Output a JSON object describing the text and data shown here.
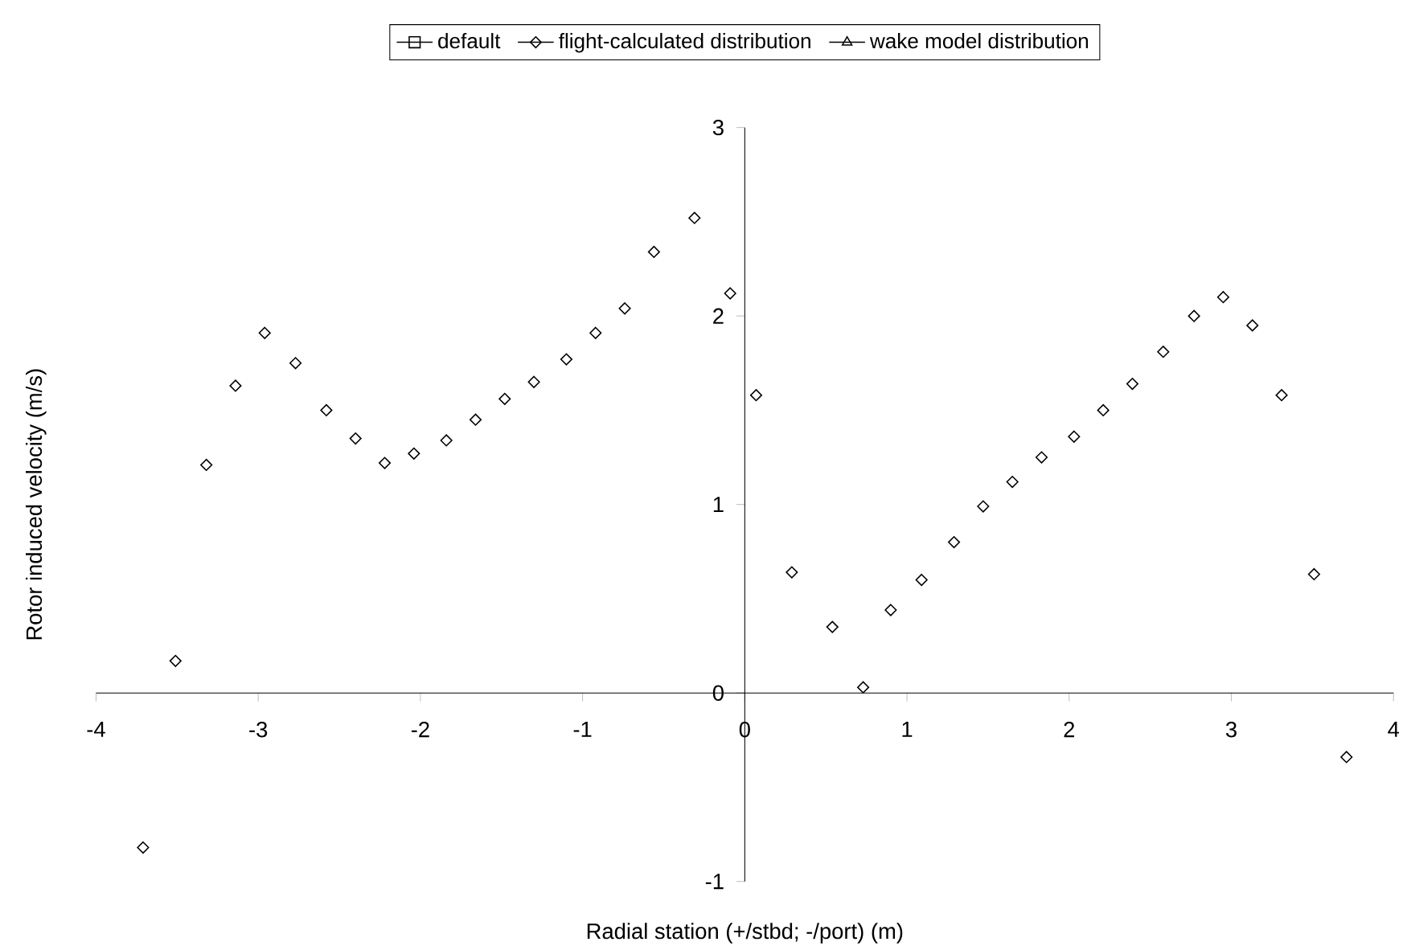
{
  "chart_data": {
    "type": "scatter",
    "xlabel": "Radial station (+/stbd; -/port) (m)",
    "ylabel": "Rotor induced velocity (m/s)",
    "x": [
      -3.71,
      -3.51,
      -3.32,
      -3.14,
      -2.96,
      -2.77,
      -2.58,
      -2.4,
      -2.22,
      -2.04,
      -1.84,
      -1.66,
      -1.48,
      -1.3,
      -1.1,
      -0.92,
      -0.74,
      -0.56,
      -0.31,
      -0.09,
      0.07,
      0.29,
      0.54,
      0.73,
      0.9,
      1.09,
      1.29,
      1.47,
      1.65,
      1.83,
      2.03,
      2.21,
      2.39,
      2.58,
      2.77,
      2.95,
      3.13,
      3.31,
      3.51,
      3.71
    ],
    "series": [
      {
        "name": "default",
        "color": "#000000",
        "marker": "square",
        "values": [
          null,
          null,
          null,
          null,
          null,
          null,
          null,
          null,
          null,
          null,
          null,
          null,
          null,
          null,
          null,
          null,
          null,
          null,
          null,
          null,
          null,
          null,
          null,
          null,
          null,
          null,
          null,
          null,
          null,
          null,
          null,
          null,
          null,
          null,
          null,
          null,
          null,
          null,
          null,
          null
        ]
      },
      {
        "name": "flight-calculated distribution",
        "color": "#000000",
        "marker": "diamond",
        "values": [
          -0.82,
          0.17,
          1.21,
          1.63,
          1.91,
          1.75,
          1.5,
          1.35,
          1.22,
          1.27,
          1.34,
          1.45,
          1.56,
          1.65,
          1.77,
          1.91,
          2.04,
          2.34,
          2.52,
          2.12,
          1.58,
          0.64,
          0.35,
          0.03,
          0.44,
          0.6,
          0.8,
          0.99,
          1.12,
          1.25,
          1.36,
          1.5,
          1.64,
          1.81,
          2.0,
          2.1,
          1.95,
          1.58,
          0.63,
          -0.34
        ]
      },
      {
        "name": "wake model distribution",
        "color": "#000000",
        "marker": "triangle",
        "values": [
          null,
          null,
          null,
          null,
          null,
          null,
          null,
          null,
          null,
          null,
          null,
          null,
          null,
          null,
          null,
          null,
          null,
          null,
          null,
          null,
          null,
          null,
          null,
          null,
          null,
          null,
          null,
          null,
          null,
          null,
          null,
          null,
          null,
          null,
          null,
          null,
          null,
          null,
          null,
          null
        ]
      }
    ],
    "xlim": [
      -4,
      4
    ],
    "ylim": [
      -1,
      3
    ],
    "xticks": [
      -4,
      -3,
      -2,
      -1,
      0,
      1,
      2,
      3,
      4
    ],
    "yticks": [
      -1,
      0,
      1,
      2,
      3
    ],
    "grid": false,
    "legend": "top"
  }
}
